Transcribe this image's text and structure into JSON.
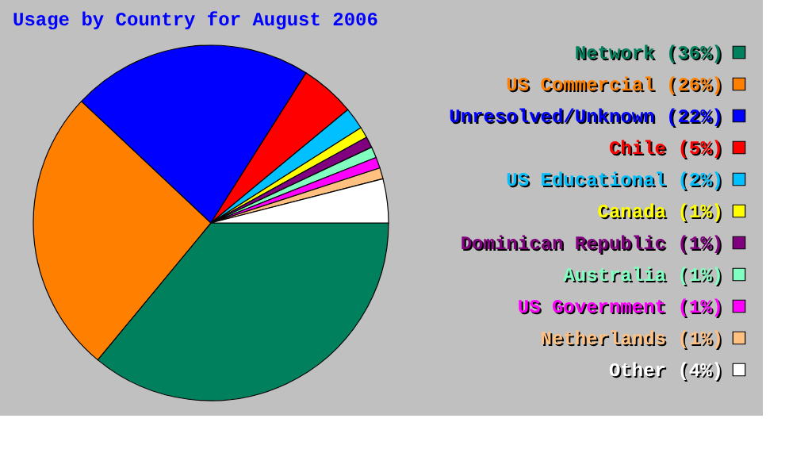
{
  "chart_data": {
    "type": "pie",
    "title": "Usage by Country for August 2006",
    "categories": [
      "Network (36%)",
      "US Commercial (26%)",
      "Unresolved/Unknown (22%)",
      "Chile (5%)",
      "US Educational (2%)",
      "Canada (1%)",
      "Dominican Republic (1%)",
      "Australia (1%)",
      "US Government (1%)",
      "Netherlands (1%)",
      "Other (4%)"
    ],
    "values": [
      36,
      26,
      22,
      5,
      2,
      1,
      1,
      1,
      1,
      1,
      4
    ],
    "colors": [
      "#00805c",
      "#ff8000",
      "#0000ff",
      "#ff0000",
      "#00c0ff",
      "#ffff00",
      "#800080",
      "#80ffc0",
      "#ff00ff",
      "#ffc080",
      "#ffffff"
    ],
    "legend": "right"
  }
}
